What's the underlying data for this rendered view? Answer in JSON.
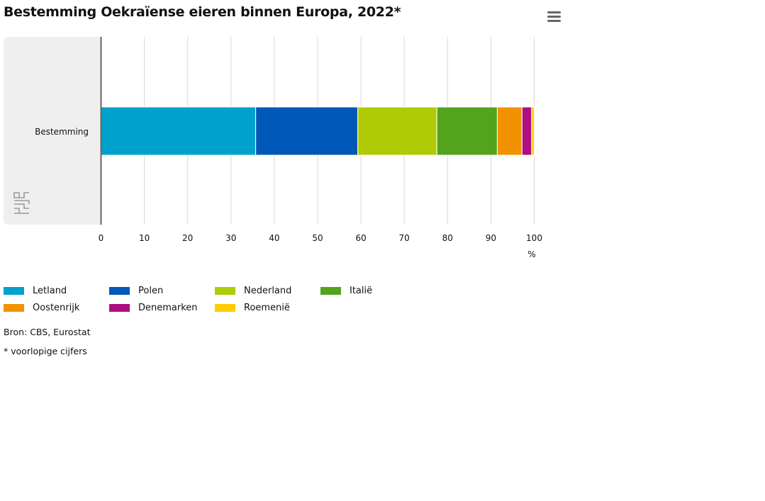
{
  "title": "Bestemming Oekraïense eieren binnen Europa, 2022*",
  "menu_icon": "hamburger-menu-icon",
  "logo_icon": "cbs-logo-icon",
  "colors": {
    "plot_band": "#efefef",
    "grid": "#d9d9d9",
    "axis": "#666666"
  },
  "chart_data": {
    "type": "bar",
    "orientation": "horizontal",
    "stacking": "percent",
    "categories": [
      "Bestemming"
    ],
    "series": [
      {
        "name": "Letland",
        "color": "#00a1cd",
        "values": [
          35.6
        ]
      },
      {
        "name": "Polen",
        "color": "#0058b8",
        "values": [
          23.5
        ]
      },
      {
        "name": "Nederland",
        "color": "#afcb05",
        "values": [
          18.2
        ]
      },
      {
        "name": "Italië",
        "color": "#53a31d",
        "values": [
          13.9
        ]
      },
      {
        "name": "Oostenrijk",
        "color": "#f39200",
        "values": [
          5.7
        ]
      },
      {
        "name": "Denemarken",
        "color": "#af0e80",
        "values": [
          2.2
        ]
      },
      {
        "name": "Roemenië",
        "color": "#ffcc00",
        "values": [
          0.6
        ]
      }
    ],
    "xlim": [
      0,
      100
    ],
    "xticks": [
      0,
      10,
      20,
      30,
      40,
      50,
      60,
      70,
      80,
      90,
      100
    ],
    "xunit": "%",
    "grid": true,
    "legend_position": "bottom-left"
  },
  "footnotes": {
    "source": "Bron: CBS, Eurostat",
    "note": "* voorlopige cijfers"
  }
}
